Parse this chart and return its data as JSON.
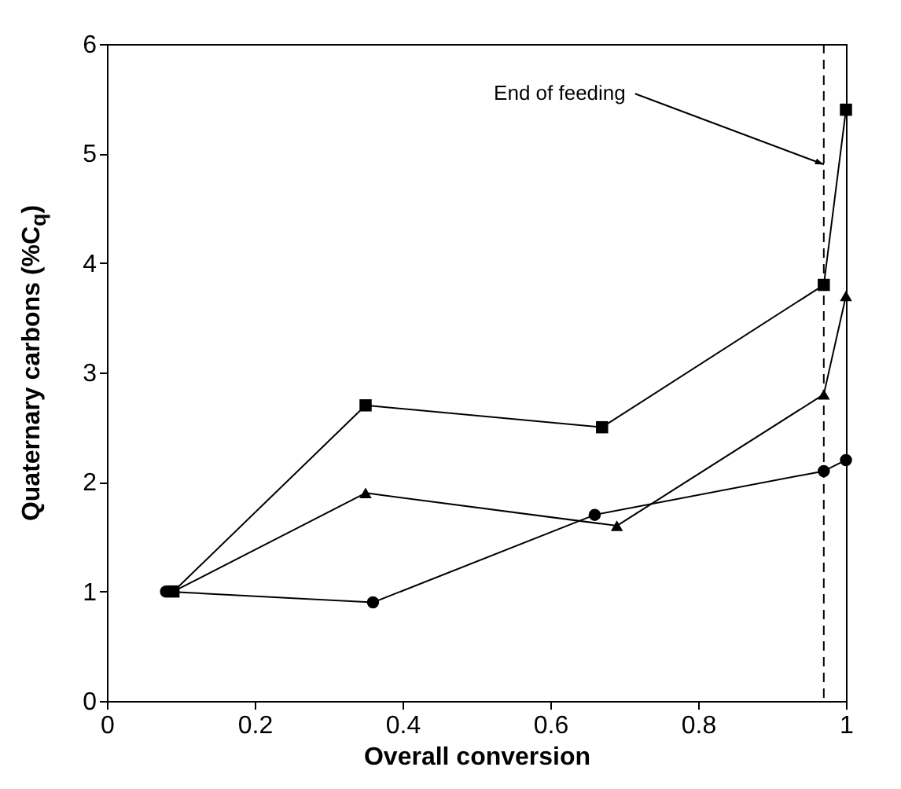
{
  "chart_data": {
    "type": "line",
    "xlabel": "Overall conversion",
    "ylabel": "Quaternary carbons (%C$_{q}$)",
    "xlim": [
      0,
      1
    ],
    "ylim": [
      0,
      6
    ],
    "xticks": [
      0,
      0.2,
      0.4,
      0.6,
      0.8,
      1
    ],
    "yticks": [
      0,
      1,
      2,
      3,
      4,
      5,
      6
    ],
    "grid": false,
    "series": [
      {
        "marker": "square",
        "color": "#000000",
        "x": [
          0.09,
          0.35,
          0.67,
          0.97,
          1.0
        ],
        "values": [
          1.0,
          2.7,
          2.5,
          3.8,
          5.4
        ]
      },
      {
        "marker": "triangle",
        "color": "#000000",
        "x": [
          0.09,
          0.35,
          0.69,
          0.97,
          1.0
        ],
        "values": [
          1.0,
          1.9,
          1.6,
          2.8,
          3.7
        ]
      },
      {
        "marker": "circle",
        "color": "#000000",
        "x": [
          0.08,
          0.36,
          0.66,
          0.97,
          1.0
        ],
        "values": [
          1.0,
          0.9,
          1.7,
          2.1,
          2.2
        ]
      }
    ],
    "ref_lines": [
      {
        "axis": "x",
        "value": 0.97,
        "line_style": "dashed",
        "color": "#000000"
      }
    ],
    "annotations": [
      {
        "text": "End of feeding",
        "x": 0.97,
        "y": 4.9
      }
    ]
  }
}
